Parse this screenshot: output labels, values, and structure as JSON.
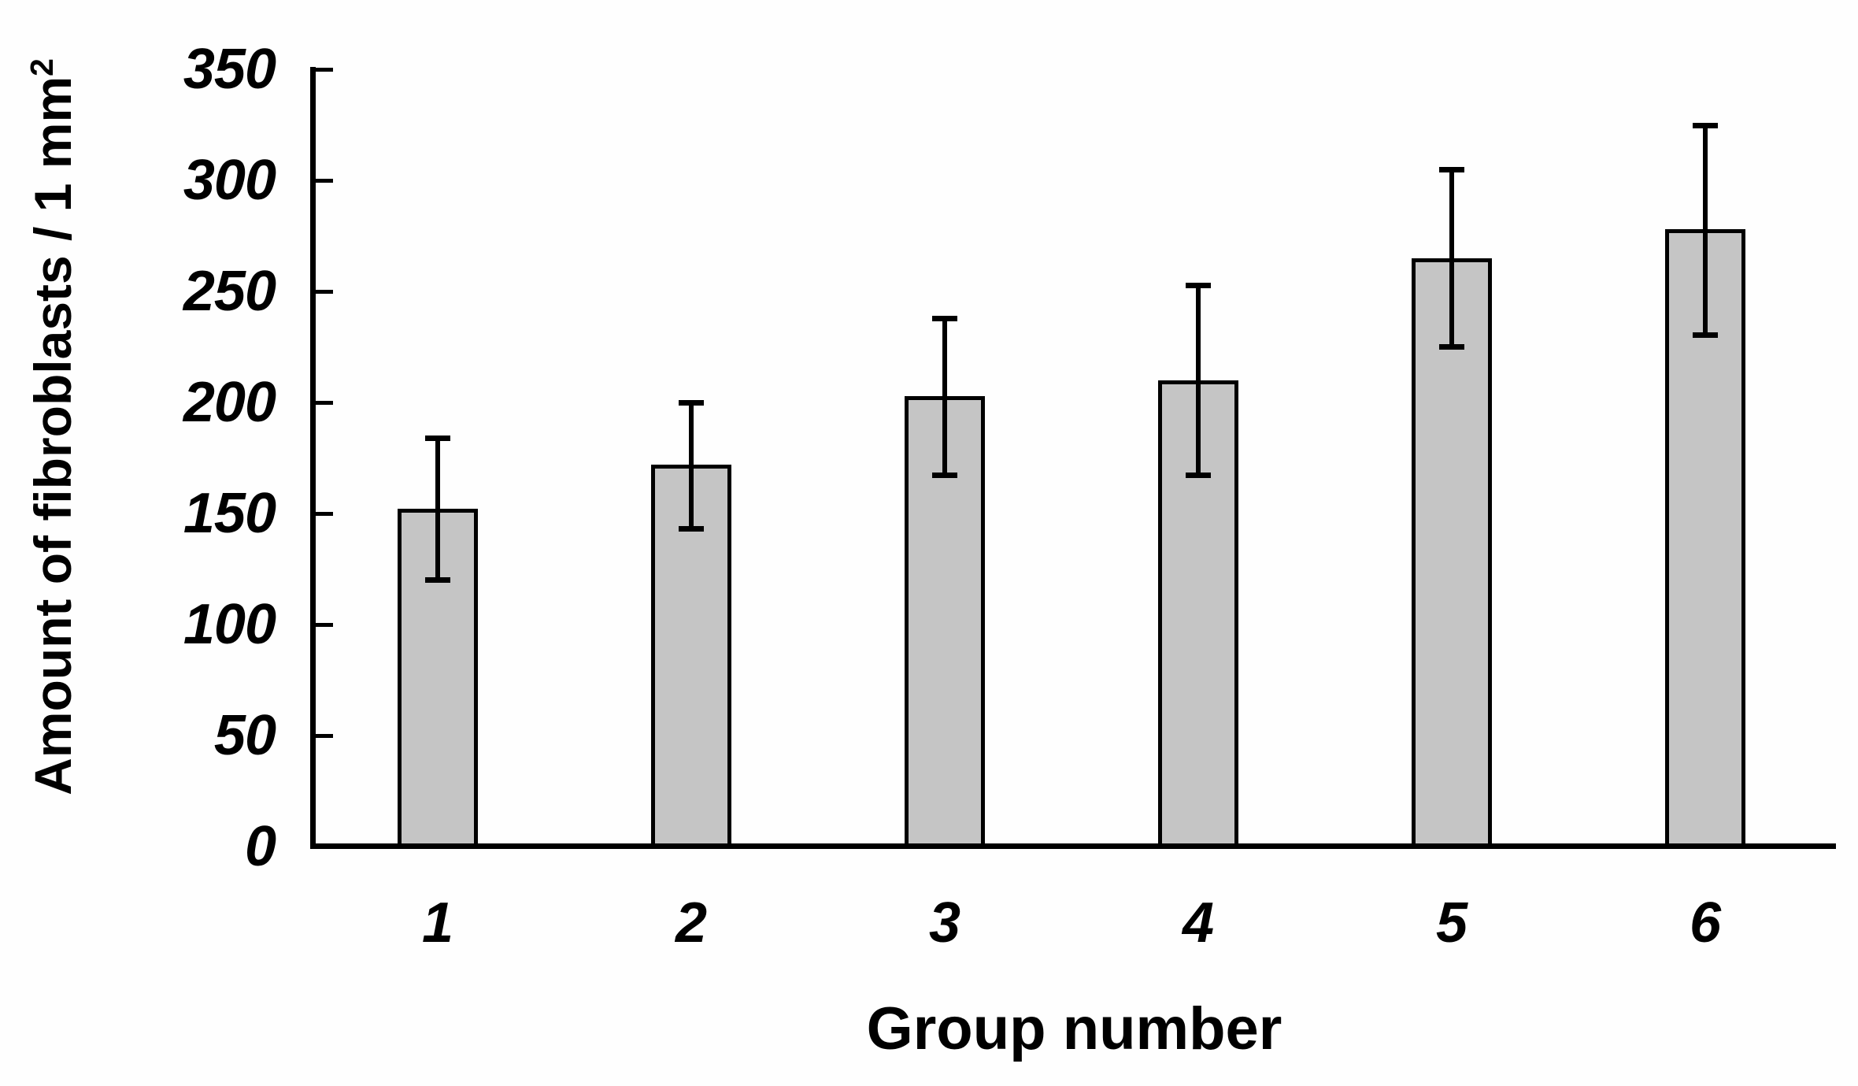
{
  "chart_data": {
    "type": "bar",
    "title": "",
    "xlabel": "Group number",
    "ylabel": {
      "text": "Amount of fibroblasts / 1 mm",
      "superscript": "2"
    },
    "categories": [
      "1",
      "2",
      "3",
      "4",
      "5",
      "6"
    ],
    "values": [
      152,
      172,
      203,
      210,
      265,
      278
    ],
    "error_up": [
      32,
      28,
      35,
      43,
      40,
      47
    ],
    "error_down": [
      32,
      29,
      36,
      43,
      40,
      48
    ],
    "yticks": [
      0,
      50,
      100,
      150,
      200,
      250,
      300,
      350
    ],
    "ylim": [
      0,
      350
    ],
    "grid": "off",
    "legend": "none",
    "error_bars": "yes",
    "colors": {
      "bar_fill": "#c5c5c5",
      "bar_border": "#000000",
      "axis": "#000000",
      "text": "#000000",
      "background": "#fefefe"
    }
  }
}
